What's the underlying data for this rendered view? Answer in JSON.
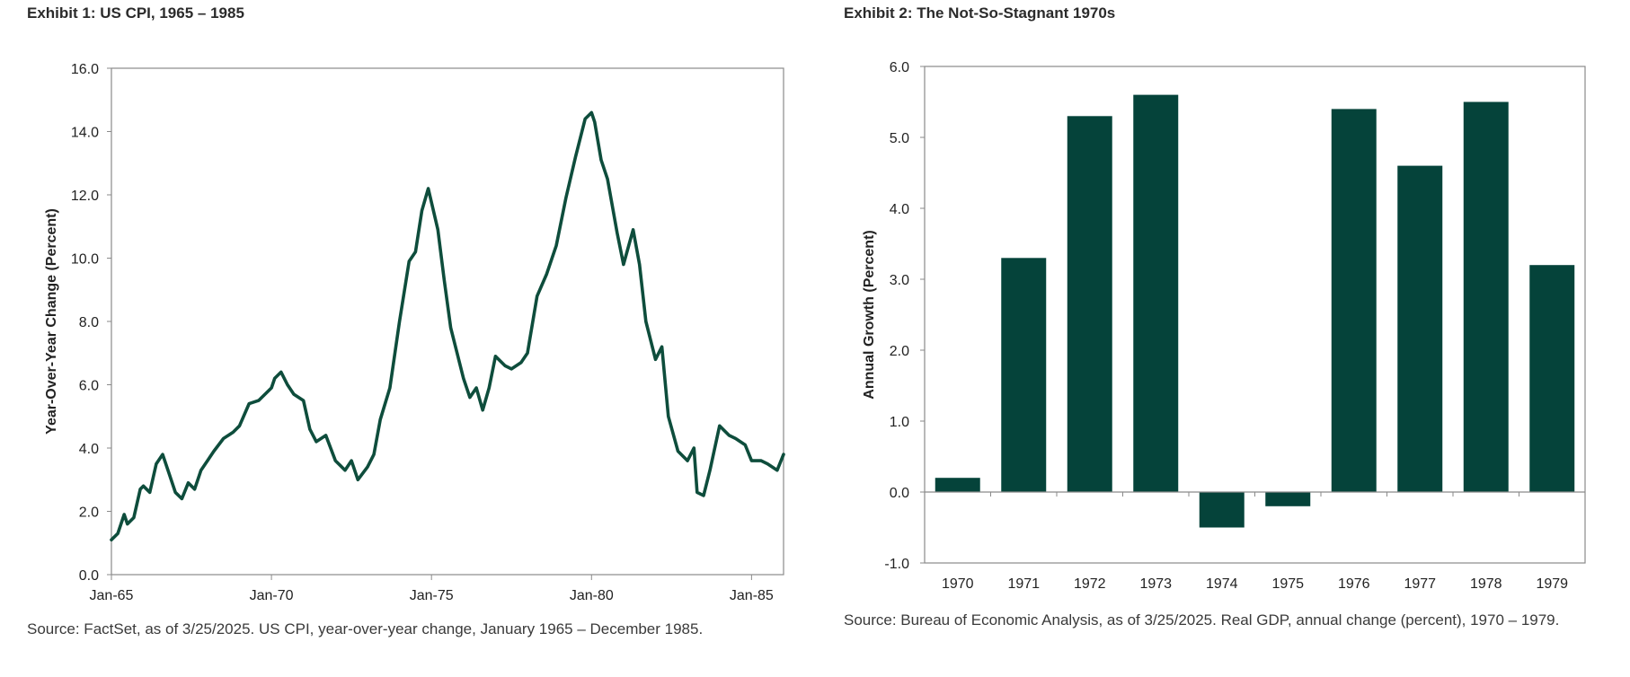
{
  "exhibits": [
    {
      "title": "Exhibit 1: US CPI, 1965 – 1985",
      "source": "Source: FactSet, as of 3/25/2025. US CPI, year-over-year change, January 1965 – December 1985."
    },
    {
      "title": "Exhibit 2: The Not-So-Stagnant 1970s",
      "source": "Source: Bureau of Economic Analysis, as of 3/25/2025. Real GDP, annual change (percent), 1970 – 1979."
    }
  ],
  "colors": {
    "series": "#0e4d3c",
    "bar": "#05433a",
    "axis": "#8a8a8a"
  },
  "chart_data": [
    {
      "type": "line",
      "title": "Exhibit 1: US CPI, 1965 – 1985",
      "xlabel": "",
      "ylabel": "Year-Over-Year Change (Percent)",
      "xlim": [
        1965.0,
        1986.0
      ],
      "ylim": [
        0,
        16
      ],
      "y_ticks": [
        0,
        2,
        4,
        6,
        8,
        10,
        12,
        14,
        16
      ],
      "y_tick_labels": [
        "0.0",
        "2.0",
        "4.0",
        "6.0",
        "8.0",
        "10.0",
        "12.0",
        "14.0",
        "16.0"
      ],
      "x_ticks": [
        1965,
        1970,
        1975,
        1980,
        1985
      ],
      "x_tick_labels": [
        "Jan-65",
        "Jan-70",
        "Jan-75",
        "Jan-80",
        "Jan-85"
      ],
      "grid": false,
      "series": [
        {
          "name": "US CPI YoY",
          "x": [
            1965.0,
            1965.2,
            1965.4,
            1965.5,
            1965.7,
            1965.9,
            1966.0,
            1966.2,
            1966.4,
            1966.6,
            1966.8,
            1967.0,
            1967.2,
            1967.4,
            1967.6,
            1967.8,
            1968.0,
            1968.2,
            1968.5,
            1968.8,
            1969.0,
            1969.3,
            1969.6,
            1970.0,
            1970.1,
            1970.3,
            1970.5,
            1970.7,
            1971.0,
            1971.2,
            1971.4,
            1971.7,
            1972.0,
            1972.3,
            1972.5,
            1972.7,
            1973.0,
            1973.2,
            1973.4,
            1973.7,
            1974.0,
            1974.3,
            1974.5,
            1974.7,
            1974.9,
            1975.2,
            1975.4,
            1975.6,
            1976.0,
            1976.2,
            1976.4,
            1976.6,
            1976.8,
            1977.0,
            1977.3,
            1977.5,
            1977.8,
            1978.0,
            1978.3,
            1978.6,
            1978.9,
            1979.2,
            1979.5,
            1979.8,
            1980.0,
            1980.1,
            1980.3,
            1980.5,
            1980.8,
            1981.0,
            1981.3,
            1981.5,
            1981.7,
            1982.0,
            1982.2,
            1982.4,
            1982.7,
            1983.0,
            1983.2,
            1983.3,
            1983.5,
            1983.7,
            1984.0,
            1984.3,
            1984.5,
            1984.8,
            1985.0,
            1985.3,
            1985.5,
            1985.8,
            1986.0
          ],
          "values": [
            1.1,
            1.3,
            1.9,
            1.6,
            1.8,
            2.7,
            2.8,
            2.6,
            3.5,
            3.8,
            3.2,
            2.6,
            2.4,
            2.9,
            2.7,
            3.3,
            3.6,
            3.9,
            4.3,
            4.5,
            4.7,
            5.4,
            5.5,
            5.9,
            6.2,
            6.4,
            6.0,
            5.7,
            5.5,
            4.6,
            4.2,
            4.4,
            3.6,
            3.3,
            3.6,
            3.0,
            3.4,
            3.8,
            4.9,
            5.9,
            8.0,
            9.9,
            10.2,
            11.5,
            12.2,
            10.9,
            9.3,
            7.8,
            6.2,
            5.6,
            5.9,
            5.2,
            5.9,
            6.9,
            6.6,
            6.5,
            6.7,
            7.0,
            8.8,
            9.5,
            10.4,
            11.9,
            13.2,
            14.4,
            14.6,
            14.3,
            13.1,
            12.5,
            10.8,
            9.8,
            10.9,
            9.8,
            8.0,
            6.8,
            7.2,
            5.0,
            3.9,
            3.6,
            4.0,
            2.6,
            2.5,
            3.3,
            4.7,
            4.4,
            4.3,
            4.1,
            3.6,
            3.6,
            3.5,
            3.3,
            3.8
          ]
        }
      ]
    },
    {
      "type": "bar",
      "title": "Exhibit 2: The Not-So-Stagnant 1970s",
      "xlabel": "",
      "ylabel": "Annual Growth (Percent)",
      "ylim": [
        -1.0,
        6.0
      ],
      "y_ticks": [
        -1,
        0,
        1,
        2,
        3,
        4,
        5,
        6
      ],
      "y_tick_labels": [
        "-1.0",
        "0.0",
        "1.0",
        "2.0",
        "3.0",
        "4.0",
        "5.0",
        "6.0"
      ],
      "grid": false,
      "categories": [
        "1970",
        "1971",
        "1972",
        "1973",
        "1974",
        "1975",
        "1976",
        "1977",
        "1978",
        "1979"
      ],
      "values": [
        0.2,
        3.3,
        5.3,
        5.6,
        -0.5,
        -0.2,
        5.4,
        4.6,
        5.5,
        3.2
      ]
    }
  ]
}
